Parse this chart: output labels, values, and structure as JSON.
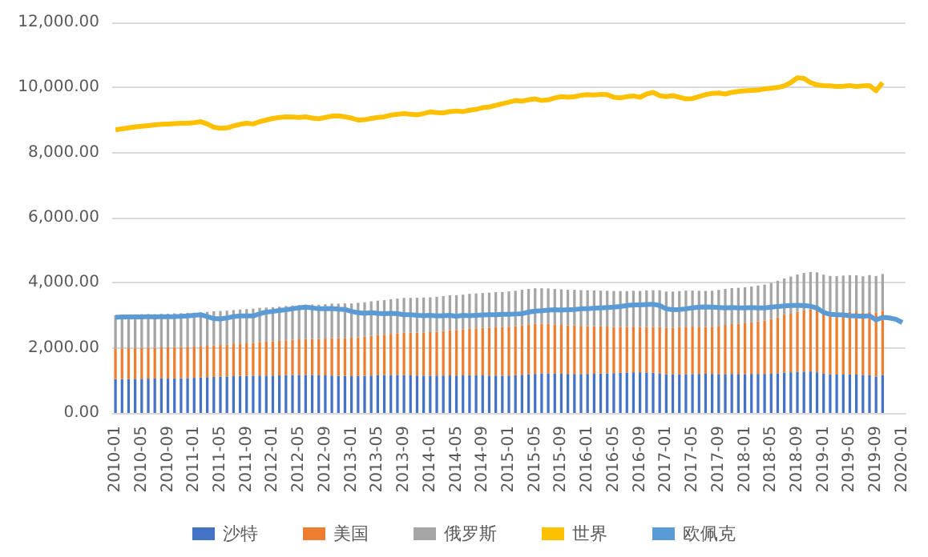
{
  "chart_data": {
    "type": "bar",
    "stacked": true,
    "grid": "y",
    "legend": "bottom",
    "marker": "none",
    "categories": [
      "2010-01",
      null,
      null,
      null,
      "2010-05",
      null,
      null,
      null,
      "2010-09",
      null,
      null,
      null,
      "2011-01",
      null,
      null,
      null,
      "2011-05",
      null,
      null,
      null,
      "2011-09",
      null,
      null,
      null,
      "2012-01",
      null,
      null,
      null,
      "2012-05",
      null,
      null,
      null,
      "2012-09",
      null,
      null,
      null,
      "2013-01",
      null,
      null,
      null,
      "2013-05",
      null,
      null,
      null,
      "2013-09",
      null,
      null,
      null,
      "2014-01",
      null,
      null,
      null,
      "2014-05",
      null,
      null,
      null,
      "2014-09",
      null,
      null,
      null,
      "2015-01",
      null,
      null,
      null,
      "2015-05",
      null,
      null,
      null,
      "2015-09",
      null,
      null,
      null,
      "2016-01",
      null,
      null,
      null,
      "2016-05",
      null,
      null,
      null,
      "2016-09",
      null,
      null,
      null,
      "2017-01",
      null,
      null,
      null,
      "2017-05",
      null,
      null,
      null,
      "2017-09",
      null,
      null,
      null,
      "2018-01",
      null,
      null,
      null,
      "2018-05",
      null,
      null,
      null,
      "2018-09",
      null,
      null,
      null,
      "2019-01",
      null,
      null,
      null,
      "2019-05",
      null,
      null,
      null,
      "2019-09",
      null,
      null,
      null,
      "2020-01"
    ],
    "ylim": [
      0,
      12000
    ],
    "yticks": [
      {
        "value": 0,
        "label": "0.00"
      },
      {
        "value": 2000,
        "label": "2,000.00"
      },
      {
        "value": 4000,
        "label": "4,000.00"
      },
      {
        "value": 6000,
        "label": "6,000.00"
      },
      {
        "value": 8000,
        "label": "8,000.00"
      },
      {
        "value": 10000,
        "label": "10,000.00"
      },
      {
        "value": 12000,
        "label": "12,000.00"
      }
    ],
    "series": [
      {
        "name": "沙特",
        "color": "#4472c4",
        "values": [
          1040,
          1040,
          1045,
          1050,
          1050,
          1055,
          1060,
          1060,
          1055,
          1060,
          1065,
          1070,
          1080,
          1090,
          1100,
          1110,
          1115,
          1120,
          1130,
          1140,
          1140,
          1145,
          1150,
          1150,
          1150,
          1155,
          1160,
          1165,
          1170,
          1170,
          1165,
          1160,
          1155,
          1150,
          1140,
          1135,
          1130,
          1135,
          1140,
          1150,
          1160,
          1165,
          1170,
          1170,
          1165,
          1155,
          1150,
          1145,
          1145,
          1150,
          1150,
          1155,
          1150,
          1155,
          1160,
          1160,
          1155,
          1150,
          1150,
          1145,
          1150,
          1160,
          1175,
          1190,
          1200,
          1210,
          1215,
          1210,
          1205,
          1200,
          1200,
          1195,
          1200,
          1205,
          1210,
          1215,
          1225,
          1235,
          1245,
          1250,
          1250,
          1245,
          1235,
          1220,
          1190,
          1185,
          1185,
          1190,
          1195,
          1200,
          1205,
          1200,
          1195,
          1195,
          1200,
          1200,
          1195,
          1200,
          1200,
          1200,
          1205,
          1220,
          1240,
          1250,
          1260,
          1270,
          1275,
          1250,
          1210,
          1190,
          1180,
          1180,
          1185,
          1180,
          1170,
          1160,
          1120,
          1170,
          null,
          null,
          null
        ]
      },
      {
        "name": "美国",
        "color": "#ed7d31",
        "values": [
          940,
          945,
          950,
          950,
          955,
          950,
          945,
          955,
          960,
          965,
          960,
          965,
          960,
          955,
          965,
          970,
          975,
          980,
          985,
          990,
          1000,
          1010,
          1030,
          1040,
          1050,
          1060,
          1070,
          1080,
          1090,
          1100,
          1110,
          1110,
          1130,
          1150,
          1160,
          1170,
          1180,
          1190,
          1200,
          1220,
          1230,
          1240,
          1260,
          1280,
          1300,
          1310,
          1320,
          1330,
          1340,
          1350,
          1370,
          1390,
          1400,
          1410,
          1430,
          1440,
          1460,
          1470,
          1480,
          1490,
          1500,
          1510,
          1520,
          1530,
          1540,
          1530,
          1520,
          1510,
          1500,
          1490,
          1490,
          1480,
          1470,
          1460,
          1450,
          1440,
          1420,
          1410,
          1400,
          1400,
          1390,
          1400,
          1410,
          1420,
          1420,
          1430,
          1450,
          1460,
          1460,
          1450,
          1440,
          1450,
          1480,
          1510,
          1530,
          1540,
          1560,
          1580,
          1610,
          1640,
          1680,
          1720,
          1760,
          1800,
          1850,
          1880,
          1900,
          1920,
          1900,
          1890,
          1900,
          1920,
          1930,
          1940,
          1920,
          1950,
          1960,
          1970,
          null,
          null,
          null
        ]
      },
      {
        "name": "俄罗斯",
        "color": "#a5a5a5",
        "values": [
          1020,
          1025,
          1025,
          1030,
          1030,
          1030,
          1030,
          1030,
          1035,
          1035,
          1040,
          1040,
          1040,
          1040,
          1040,
          1045,
          1045,
          1045,
          1045,
          1045,
          1050,
          1050,
          1050,
          1050,
          1050,
          1050,
          1055,
          1055,
          1055,
          1055,
          1055,
          1055,
          1055,
          1060,
          1060,
          1060,
          1055,
          1060,
          1060,
          1060,
          1060,
          1060,
          1065,
          1065,
          1070,
          1070,
          1070,
          1070,
          1070,
          1070,
          1070,
          1070,
          1070,
          1070,
          1070,
          1070,
          1070,
          1075,
          1080,
          1080,
          1085,
          1085,
          1090,
          1090,
          1090,
          1090,
          1090,
          1090,
          1095,
          1095,
          1095,
          1100,
          1100,
          1100,
          1100,
          1100,
          1100,
          1100,
          1100,
          1105,
          1110,
          1120,
          1125,
          1130,
          1120,
          1115,
          1110,
          1110,
          1105,
          1105,
          1105,
          1105,
          1105,
          1105,
          1105,
          1105,
          1105,
          1105,
          1105,
          1105,
          1110,
          1120,
          1130,
          1140,
          1145,
          1150,
          1155,
          1150,
          1140,
          1130,
          1125,
          1120,
          1120,
          1110,
          1110,
          1125,
          1130,
          1130,
          null,
          null,
          null
        ]
      },
      {
        "name": "世界",
        "type": "line",
        "color": "#ffc000",
        "values": [
          8700,
          8730,
          8760,
          8790,
          8810,
          8830,
          8850,
          8870,
          8880,
          8890,
          8900,
          8900,
          8920,
          8950,
          8880,
          8780,
          8750,
          8760,
          8820,
          8870,
          8900,
          8880,
          8950,
          9000,
          9050,
          9080,
          9100,
          9090,
          9080,
          9100,
          9060,
          9040,
          9080,
          9120,
          9130,
          9100,
          9060,
          9000,
          9010,
          9050,
          9080,
          9100,
          9150,
          9180,
          9200,
          9180,
          9160,
          9200,
          9250,
          9230,
          9220,
          9260,
          9280,
          9260,
          9300,
          9330,
          9380,
          9400,
          9450,
          9500,
          9550,
          9600,
          9580,
          9620,
          9650,
          9600,
          9620,
          9680,
          9720,
          9700,
          9720,
          9760,
          9780,
          9770,
          9790,
          9780,
          9700,
          9680,
          9720,
          9740,
          9700,
          9800,
          9850,
          9750,
          9720,
          9750,
          9700,
          9650,
          9660,
          9720,
          9780,
          9820,
          9830,
          9800,
          9850,
          9880,
          9900,
          9910,
          9920,
          9960,
          9980,
          10000,
          10050,
          10150,
          10300,
          10280,
          10150,
          10080,
          10060,
          10050,
          10030,
          10040,
          10060,
          10030,
          10050,
          10060,
          9900,
          10150,
          null,
          null,
          null
        ]
      },
      {
        "name": "欧佩克",
        "type": "line",
        "color": "#5b9bd5",
        "values": [
          2940,
          2950,
          2950,
          2950,
          2950,
          2960,
          2950,
          2960,
          2960,
          2960,
          2970,
          2980,
          3000,
          3020,
          2960,
          2900,
          2890,
          2920,
          2960,
          2980,
          2980,
          2980,
          3050,
          3100,
          3120,
          3150,
          3170,
          3200,
          3230,
          3250,
          3230,
          3200,
          3200,
          3210,
          3190,
          3180,
          3120,
          3080,
          3060,
          3080,
          3060,
          3050,
          3060,
          3050,
          3020,
          3020,
          3000,
          2990,
          3000,
          2980,
          2990,
          3000,
          2970,
          3000,
          2990,
          3000,
          3010,
          3020,
          3020,
          3030,
          3030,
          3040,
          3050,
          3100,
          3130,
          3140,
          3160,
          3170,
          3160,
          3170,
          3180,
          3200,
          3200,
          3220,
          3230,
          3240,
          3250,
          3270,
          3300,
          3320,
          3320,
          3330,
          3340,
          3300,
          3200,
          3170,
          3180,
          3200,
          3230,
          3250,
          3260,
          3250,
          3240,
          3230,
          3240,
          3230,
          3230,
          3240,
          3230,
          3230,
          3250,
          3270,
          3290,
          3300,
          3310,
          3300,
          3280,
          3220,
          3090,
          3030,
          3020,
          3010,
          2990,
          2980,
          2970,
          2990,
          2860,
          2940,
          2920,
          2880,
          2780
        ]
      }
    ]
  }
}
